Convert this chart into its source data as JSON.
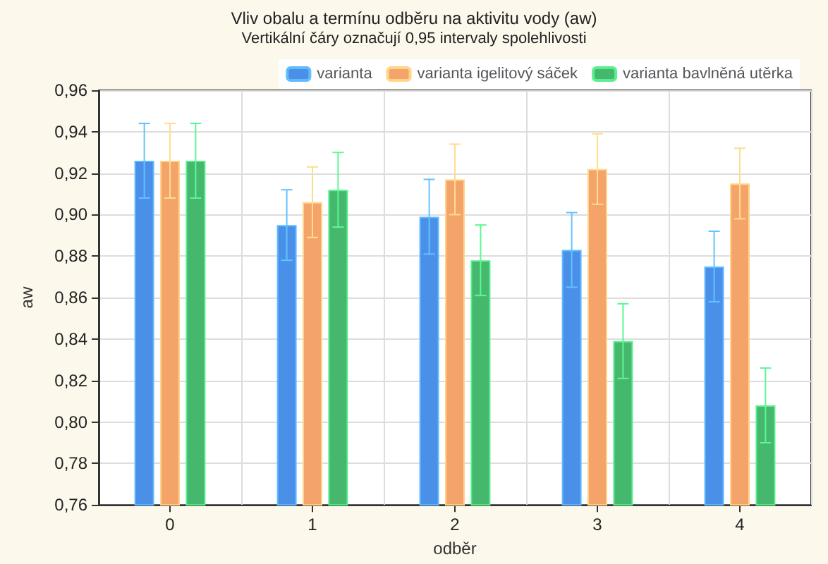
{
  "chart_data": {
    "type": "bar",
    "title": "Vliv obalu a termínu odběru na aktivitu vody (aw)",
    "subtitle": "Vertikální čáry označují 0,95 intervaly spolehlivosti",
    "xlabel": "odběr",
    "ylabel": "aw",
    "categories": [
      "0",
      "1",
      "2",
      "3",
      "4"
    ],
    "series": [
      {
        "name": "varianta",
        "color": "#4a90e8",
        "values": [
          0.926,
          0.895,
          0.899,
          0.883,
          0.875
        ],
        "errors": [
          0.018,
          0.017,
          0.018,
          0.018,
          0.017
        ]
      },
      {
        "name": "varianta igelitový sáček",
        "color": "#f4a46a",
        "values": [
          0.926,
          0.906,
          0.917,
          0.922,
          0.915
        ],
        "errors": [
          0.018,
          0.017,
          0.017,
          0.017,
          0.017
        ]
      },
      {
        "name": "varianta bavlněná utěrka",
        "color": "#45b86e",
        "values": [
          0.926,
          0.912,
          0.878,
          0.839,
          0.808
        ],
        "errors": [
          0.018,
          0.018,
          0.017,
          0.018,
          0.018
        ]
      }
    ],
    "ylim": [
      0.76,
      0.96
    ],
    "yticks": [
      {
        "value": 0.76,
        "label": "0,76"
      },
      {
        "value": 0.78,
        "label": "0,78"
      },
      {
        "value": 0.8,
        "label": "0,80"
      },
      {
        "value": 0.82,
        "label": "0,82"
      },
      {
        "value": 0.84,
        "label": "0,84"
      },
      {
        "value": 0.86,
        "label": "0,86"
      },
      {
        "value": 0.88,
        "label": "0,88"
      },
      {
        "value": 0.9,
        "label": "0,90"
      },
      {
        "value": 0.92,
        "label": "0,92"
      },
      {
        "value": 0.94,
        "label": "0,94"
      },
      {
        "value": 0.96,
        "label": "0,96"
      }
    ],
    "grid": true,
    "legend": "top right"
  }
}
